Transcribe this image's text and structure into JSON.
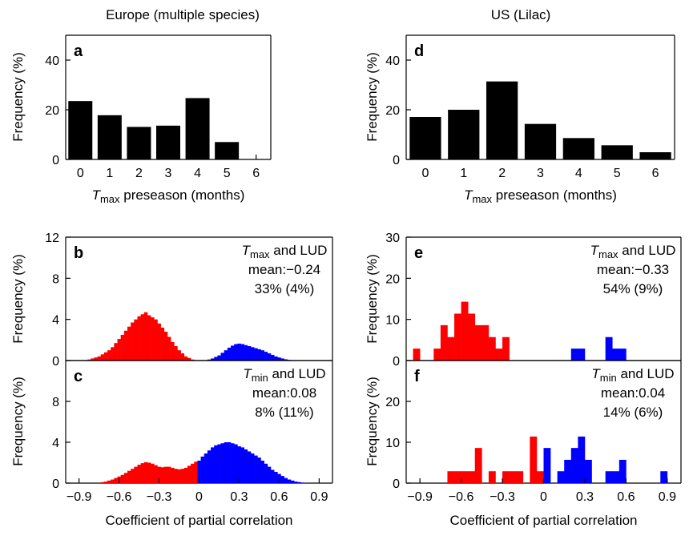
{
  "figure": {
    "columns": [
      "Europe (multiple species)",
      "US (Lilac)"
    ],
    "xlabel_preseason": {
      "var": "T",
      "sub": "max",
      "rest": " preseason (months)"
    },
    "xlabel_corr": "Coefficient of partial correlation",
    "ylabel": "Frequency (%)"
  },
  "chart_data": [
    {
      "id": "a",
      "type": "bar",
      "label": "a",
      "column": 0,
      "categories": [
        "0",
        "1",
        "2",
        "3",
        "4",
        "5",
        "6"
      ],
      "values": [
        23.5,
        17.8,
        13.1,
        13.6,
        24.7,
        7.0,
        0
      ],
      "ylim": [
        0,
        50
      ],
      "yticks": [
        0,
        20,
        40
      ],
      "xlabel": "Tmax preseason (months)",
      "ylabel": "Frequency (%)",
      "color": "#000000"
    },
    {
      "id": "d",
      "type": "bar",
      "label": "d",
      "column": 1,
      "categories": [
        "0",
        "1",
        "2",
        "3",
        "4",
        "5",
        "6"
      ],
      "values": [
        17.1,
        20.0,
        31.4,
        14.3,
        8.6,
        5.7,
        2.9
      ],
      "ylim": [
        0,
        50
      ],
      "yticks": [
        0,
        20,
        40
      ],
      "xlabel": "Tmax preseason (months)",
      "ylabel": "Frequency (%)",
      "color": "#000000"
    },
    {
      "id": "b",
      "type": "histogram",
      "label": "b",
      "column": 0,
      "annotation": {
        "var": "T",
        "sub": "max",
        "rest": " and LUD",
        "mean": "mean:−0.24",
        "pct": "33% (4%)"
      },
      "bin_width": 0.025,
      "series": [
        {
          "name": "negative",
          "color": "#ff0000",
          "x": [
            -0.825,
            -0.8,
            -0.775,
            -0.75,
            -0.725,
            -0.7,
            -0.675,
            -0.65,
            -0.625,
            -0.6,
            -0.575,
            -0.55,
            -0.525,
            -0.5,
            -0.475,
            -0.45,
            -0.425,
            -0.4,
            -0.375,
            -0.35,
            -0.325,
            -0.3,
            -0.275,
            -0.25,
            -0.225,
            -0.2,
            -0.175,
            -0.15,
            -0.125,
            -0.1,
            -0.075,
            -0.05
          ],
          "values": [
            0.1,
            0.2,
            0.3,
            0.4,
            0.6,
            0.8,
            1.0,
            1.3,
            1.7,
            2.1,
            2.5,
            2.9,
            3.3,
            3.7,
            4.0,
            4.3,
            4.5,
            4.7,
            4.4,
            4.2,
            4.0,
            3.6,
            3.2,
            2.8,
            2.3,
            1.8,
            1.4,
            1.0,
            0.7,
            0.4,
            0.25,
            0.1
          ]
        },
        {
          "name": "positive",
          "color": "#0000ff",
          "x": [
            0.075,
            0.1,
            0.125,
            0.15,
            0.175,
            0.2,
            0.225,
            0.25,
            0.275,
            0.3,
            0.325,
            0.35,
            0.375,
            0.4,
            0.425,
            0.45,
            0.475,
            0.5,
            0.525,
            0.55,
            0.575,
            0.6,
            0.625,
            0.65,
            0.675,
            0.7
          ],
          "values": [
            0.1,
            0.2,
            0.35,
            0.5,
            0.75,
            1.0,
            1.25,
            1.45,
            1.6,
            1.65,
            1.6,
            1.5,
            1.4,
            1.3,
            1.2,
            1.1,
            1.0,
            0.85,
            0.7,
            0.55,
            0.4,
            0.3,
            0.2,
            0.12,
            0.06,
            0.03
          ]
        }
      ],
      "xlim": [
        -1.0,
        1.0
      ],
      "ylim": [
        0,
        12
      ],
      "yticks": [
        0,
        4,
        8,
        12
      ],
      "ylabel": "Frequency (%)"
    },
    {
      "id": "c",
      "type": "histogram",
      "label": "c",
      "column": 0,
      "annotation": {
        "var": "T",
        "sub": "min",
        "rest": " and LUD",
        "mean": "mean:0.08",
        "pct": "8% (11%)"
      },
      "bin_width": 0.025,
      "series": [
        {
          "name": "negative",
          "color": "#ff0000",
          "x": [
            -0.725,
            -0.7,
            -0.675,
            -0.65,
            -0.625,
            -0.6,
            -0.575,
            -0.55,
            -0.525,
            -0.5,
            -0.475,
            -0.45,
            -0.425,
            -0.4,
            -0.375,
            -0.35,
            -0.325,
            -0.3,
            -0.275,
            -0.25,
            -0.225,
            -0.2,
            -0.175,
            -0.15,
            -0.125,
            -0.1,
            -0.075,
            -0.05,
            -0.025
          ],
          "values": [
            0.1,
            0.15,
            0.25,
            0.35,
            0.5,
            0.65,
            0.8,
            1.0,
            1.2,
            1.4,
            1.6,
            1.8,
            1.95,
            2.05,
            2.0,
            1.9,
            1.75,
            1.6,
            1.55,
            1.6,
            1.6,
            1.5,
            1.4,
            1.35,
            1.4,
            1.5,
            1.7,
            1.9,
            2.1
          ]
        },
        {
          "name": "positive",
          "color": "#0000ff",
          "x": [
            0.0,
            0.025,
            0.05,
            0.075,
            0.1,
            0.125,
            0.15,
            0.175,
            0.2,
            0.225,
            0.25,
            0.275,
            0.3,
            0.325,
            0.35,
            0.375,
            0.4,
            0.425,
            0.45,
            0.475,
            0.5,
            0.525,
            0.55,
            0.575,
            0.6,
            0.625,
            0.65,
            0.675,
            0.7,
            0.725,
            0.75,
            0.775,
            0.8
          ],
          "values": [
            2.2,
            2.6,
            2.9,
            3.2,
            3.5,
            3.7,
            3.8,
            3.9,
            4.0,
            4.0,
            3.9,
            3.8,
            3.6,
            3.5,
            3.3,
            3.1,
            2.9,
            2.7,
            2.5,
            2.2,
            1.9,
            1.6,
            1.3,
            1.1,
            0.9,
            0.7,
            0.5,
            0.35,
            0.25,
            0.15,
            0.1,
            0.05,
            0.03
          ]
        }
      ],
      "xlim": [
        -1.0,
        1.0
      ],
      "ylim": [
        0,
        12
      ],
      "yticks": [
        0,
        4,
        8
      ],
      "xticks": [
        "−0.9",
        "−0.6",
        "−0.3",
        "0",
        "0.3",
        "0.6",
        "0.9"
      ],
      "xtick_values": [
        -0.9,
        -0.6,
        -0.3,
        0,
        0.3,
        0.6,
        0.9
      ],
      "xlabel": "Coefficient of partial correlation",
      "ylabel": "Frequency (%)"
    },
    {
      "id": "e",
      "type": "histogram",
      "label": "e",
      "column": 1,
      "annotation": {
        "var": "T",
        "sub": "max",
        "rest": " and LUD",
        "mean": "mean:−0.33",
        "pct": "54% (9%)"
      },
      "bin_width": 0.05,
      "series": [
        {
          "name": "negative",
          "color": "#ff0000",
          "x": [
            -0.925,
            -0.775,
            -0.725,
            -0.675,
            -0.625,
            -0.575,
            -0.525,
            -0.475,
            -0.425,
            -0.375,
            -0.325,
            -0.275
          ],
          "values": [
            2.9,
            2.9,
            8.6,
            5.7,
            11.4,
            14.3,
            11.4,
            8.6,
            8.6,
            5.7,
            2.9,
            5.7
          ]
        },
        {
          "name": "positive",
          "color": "#0000ff",
          "x": [
            0.225,
            0.275,
            0.475,
            0.525,
            0.575
          ],
          "values": [
            2.9,
            2.9,
            5.7,
            2.9,
            2.9
          ]
        }
      ],
      "xlim": [
        -1.0,
        1.0
      ],
      "ylim": [
        0,
        30
      ],
      "yticks": [
        0,
        10,
        20,
        30
      ],
      "ylabel": "Frequency (%)"
    },
    {
      "id": "f",
      "type": "histogram",
      "label": "f",
      "column": 1,
      "annotation": {
        "var": "T",
        "sub": "min",
        "rest": " and LUD",
        "mean": "mean:0.04",
        "pct": "14% (6%)"
      },
      "bin_width": 0.05,
      "series": [
        {
          "name": "negative",
          "color": "#ff0000",
          "x": [
            -0.675,
            -0.625,
            -0.575,
            -0.525,
            -0.475,
            -0.375,
            -0.275,
            -0.225,
            -0.175,
            -0.075,
            -0.025
          ],
          "values": [
            2.9,
            2.9,
            2.9,
            2.9,
            8.6,
            2.9,
            2.9,
            2.9,
            2.9,
            11.4,
            2.9
          ]
        },
        {
          "name": "positive",
          "color": "#0000ff",
          "x": [
            0.025,
            0.125,
            0.175,
            0.225,
            0.275,
            0.325,
            0.475,
            0.525,
            0.575,
            0.875
          ],
          "values": [
            8.6,
            2.9,
            5.7,
            8.6,
            11.4,
            5.7,
            2.9,
            2.9,
            5.7,
            2.9
          ]
        }
      ],
      "xlim": [
        -1.0,
        1.0
      ],
      "ylim": [
        0,
        30
      ],
      "yticks": [
        0,
        10,
        20
      ],
      "xticks": [
        "−0.9",
        "−0.6",
        "−0.3",
        "0",
        "0.3",
        "0.6",
        "0.9"
      ],
      "xtick_values": [
        -0.9,
        -0.6,
        -0.3,
        0,
        0.3,
        0.6,
        0.9
      ],
      "xlabel": "Coefficient of partial correlation",
      "ylabel": "Frequency (%)"
    }
  ]
}
